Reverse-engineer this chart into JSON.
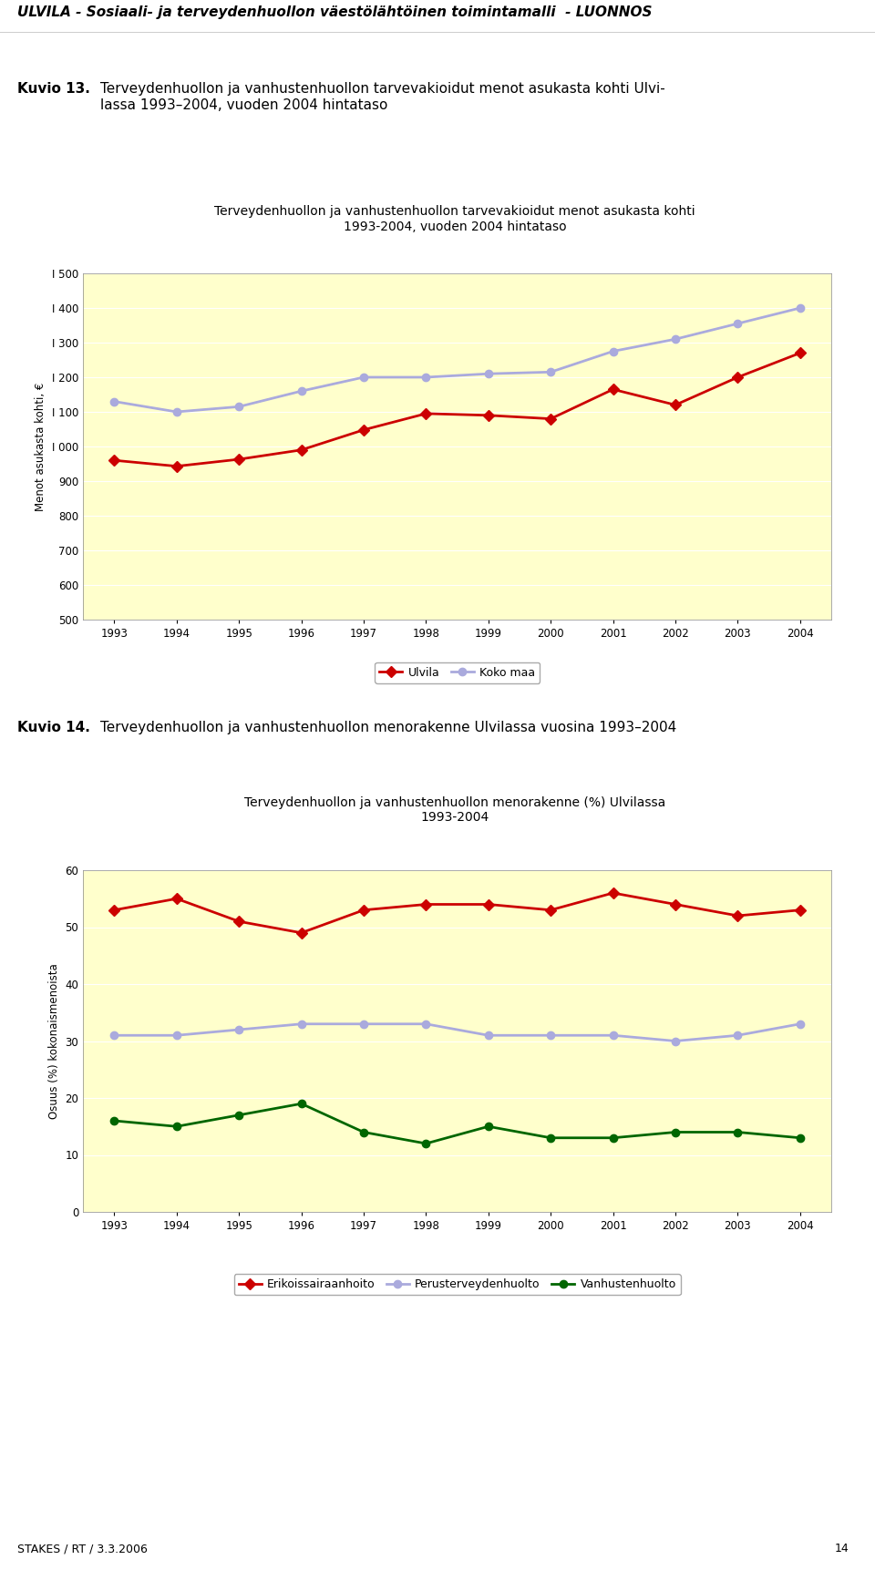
{
  "page_title": "ULVILA - Sosiaali- ja terveydenhuollon väestölähtöinen toimintamalli  - LUONNOS",
  "kuvio13_label": "Kuvio 13.",
  "kuvio13_title": "Terveydenhuollon ja vanhustenhuollon tarvevakioidut menot asukasta kohti Ulvi-\nlassa 1993–2004, vuoden 2004 hintataso",
  "chart1_title_line1": "Terveydenhuollon ja vanhustenhuollon tarvevakioidut menot asukasta kohti",
  "chart1_title_line2": "1993-2004, vuoden 2004 hintataso",
  "chart1_ylabel": "Menot asukasta kohti, €",
  "chart1_ylim": [
    500,
    1500
  ],
  "chart1_yticks": [
    500,
    600,
    700,
    800,
    900,
    1000,
    1100,
    1200,
    1300,
    1400,
    1500
  ],
  "chart1_ytick_labels": [
    "500",
    "600",
    "700",
    "800",
    "900",
    "I 000",
    "I 100",
    "I 200",
    "I 300",
    "I 400",
    "I 500"
  ],
  "years": [
    1993,
    1994,
    1995,
    1996,
    1997,
    1998,
    1999,
    2000,
    2001,
    2002,
    2003,
    2004
  ],
  "ulvila_data": [
    960,
    943,
    963,
    990,
    1048,
    1095,
    1090,
    1080,
    1165,
    1120,
    1200,
    1270
  ],
  "koko_maa_data": [
    1130,
    1100,
    1115,
    1160,
    1200,
    1200,
    1210,
    1215,
    1275,
    1310,
    1355,
    1400
  ],
  "ulvila_color": "#cc0000",
  "koko_maa_color": "#aaaadd",
  "legend1_ulvila": "Ulvila",
  "legend1_koko_maa": "Koko maa",
  "kuvio14_label": "Kuvio 14.",
  "kuvio14_title": "Terveydenhuollon ja vanhustenhuollon menorakenne Ulvilassa vuosina 1993–2004",
  "chart2_title_line1": "Terveydenhuollon ja vanhustenhuollon menorakenne (%) Ulvilassa",
  "chart2_title_line2": "1993-2004",
  "chart2_ylabel": "Osuus (%) kokonaismenoista",
  "chart2_ylim": [
    0,
    60
  ],
  "chart2_yticks": [
    0,
    10,
    20,
    30,
    40,
    50,
    60
  ],
  "erikoissairaanhoito_data": [
    53,
    55,
    51,
    49,
    53,
    54,
    54,
    53,
    56,
    54,
    52,
    53
  ],
  "perusterveydenhuolto_data": [
    31,
    31,
    32,
    33,
    33,
    33,
    31,
    31,
    31,
    30,
    31,
    33
  ],
  "vanhustenhuolto_data": [
    16,
    15,
    17,
    19,
    14,
    12,
    15,
    13,
    13,
    14,
    14,
    13
  ],
  "erikoissairaanhoito_color": "#cc0000",
  "perusterveydenhuolto_color": "#aaaadd",
  "vanhustenhuolto_color": "#006600",
  "legend2_erikoissairaanhoito": "Erikoissairaanhoito",
  "legend2_perusterveydenhuolto": "Perusterveydenhuolto",
  "legend2_vanhustenhuolto": "Vanhustenhuolto",
  "chart_bg_color": "#ffffcc",
  "footer_text": "STAKES / RT / 3.3.2006",
  "footer_page": "14"
}
